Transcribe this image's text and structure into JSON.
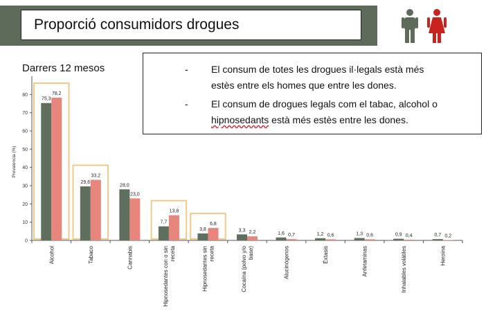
{
  "header": {
    "title": "Proporció consumidors drogues"
  },
  "subtitle": "Darrers 12 mesos",
  "notes": [
    {
      "dash": "-",
      "line1": "El consum de totes les drogues il·legals està més",
      "line2": "estès entre els homes que entre les dones."
    },
    {
      "dash": "-",
      "line1": "El consum de drogues legals com el tabac, alcohol o",
      "line2a": "hipnosedants",
      "line2b": " està més estès entre les dones."
    }
  ],
  "icons": {
    "male": "male-figure-icon",
    "female": "female-figure-icon"
  },
  "colors": {
    "male": "#5f6f5e",
    "female": "#e8857d",
    "highlight": "#f0c98a",
    "male_icon": "#5e6b5a",
    "female_icon": "#c8231e"
  },
  "chart_data": {
    "type": "bar",
    "ylabel": "Prevalencia (%)",
    "ylim": [
      0,
      90
    ],
    "yticks": [
      "0",
      "10",
      "20",
      "30",
      "40",
      "50",
      "60",
      "70",
      "80"
    ],
    "categories": [
      "Alcohol",
      "Tabaco",
      "Cannabis",
      "Hipnosedantes con o sin receta",
      "Hipnosedantes sin receta",
      "Cocaína (polvo y/o base)",
      "Alucinógenos",
      "Éxtasis",
      "Anfetaminas",
      "Inhalables volátiles",
      "Heroína"
    ],
    "category_lines": [
      [
        "Alcohol"
      ],
      [
        "Tabaco"
      ],
      [
        "Cannabis"
      ],
      [
        "Hipnosedantes con o sin",
        "receta"
      ],
      [
        "Hipnosedantes sin",
        "receta"
      ],
      [
        "Cocaína (polvo y/o",
        "base)"
      ],
      [
        "Alucinógenos"
      ],
      [
        "Éxtasis"
      ],
      [
        "Anfetaminas"
      ],
      [
        "Inhalables volátiles"
      ],
      [
        "Heroína"
      ]
    ],
    "series": [
      {
        "values": [
          75.3,
          29.6,
          28.0,
          7.7,
          3.8,
          3.3,
          1.6,
          1.2,
          1.3,
          0.9,
          0.7
        ],
        "labels": [
          "75,3",
          "29,6",
          "28,0",
          "7,7",
          "3,8",
          "3,3",
          "1,6",
          "1,2",
          "1,3",
          "0,9",
          "0,7"
        ]
      },
      {
        "values": [
          78.2,
          33.2,
          23.0,
          13.8,
          6.8,
          2.2,
          0.7,
          0.6,
          0.6,
          0.4,
          0.2
        ],
        "labels": [
          "78,2",
          "33,2",
          "23,0",
          "13,8",
          "6,8",
          "2,2",
          "0,7",
          "0,6",
          "0,6",
          "0,4",
          "0,2"
        ]
      }
    ],
    "highlighted_categories": [
      "Alcohol",
      "Tabaco",
      "Hipnosedantes con o sin receta",
      "Hipnosedantes sin receta"
    ],
    "grid": false,
    "legend": "none"
  }
}
